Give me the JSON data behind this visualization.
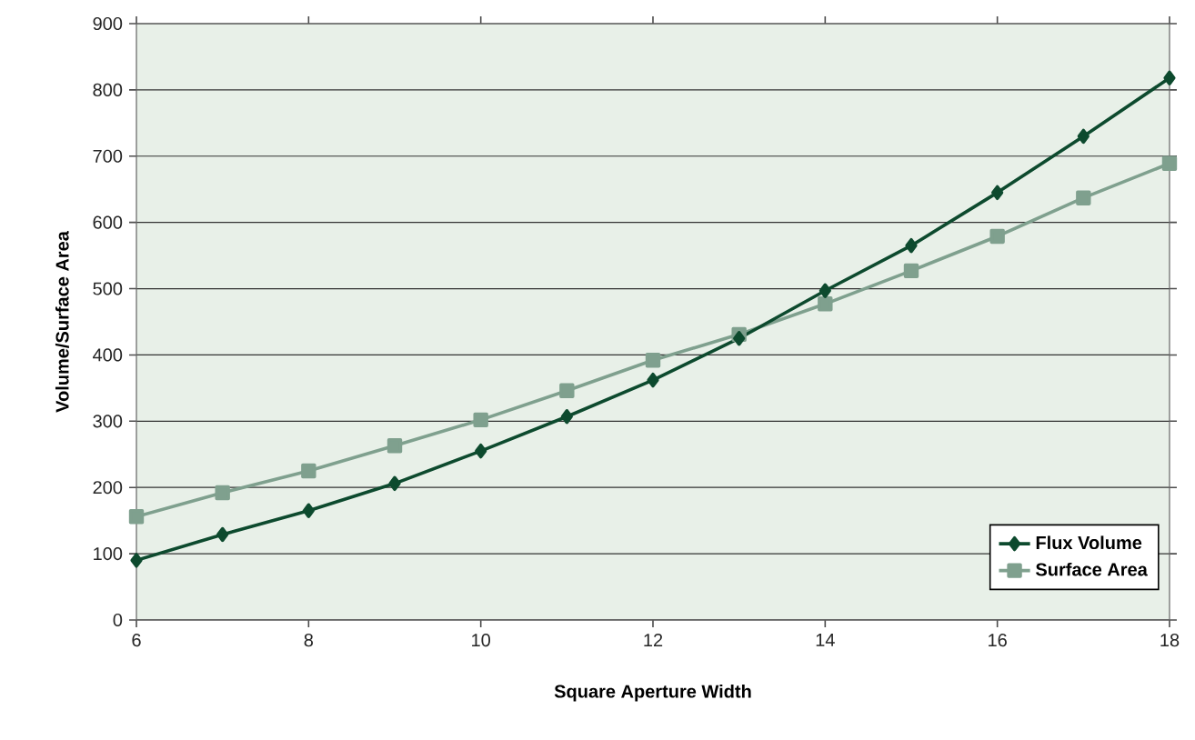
{
  "chart_data": {
    "type": "line",
    "xlabel": "Square Aperture Width",
    "ylabel": "Volume/Surface Area",
    "x": [
      6,
      7,
      8,
      9,
      10,
      11,
      12,
      13,
      14,
      15,
      16,
      17,
      18
    ],
    "series": [
      {
        "name": "Flux Volume",
        "color": "#0d4a2e",
        "marker": "diamond",
        "values": [
          90,
          129,
          165,
          206,
          255,
          307,
          362,
          425,
          497,
          565,
          645,
          730,
          818
        ]
      },
      {
        "name": "Surface Area",
        "color": "#7fa08e",
        "marker": "square",
        "values": [
          156,
          192,
          225,
          263,
          302,
          346,
          392,
          431,
          477,
          527,
          579,
          637,
          689
        ]
      }
    ],
    "xlim": [
      6,
      18
    ],
    "xticks": [
      6,
      8,
      10,
      12,
      14,
      16,
      18
    ],
    "ylim": [
      0,
      900
    ],
    "yticks": [
      0,
      100,
      200,
      300,
      400,
      500,
      600,
      700,
      800,
      900
    ],
    "grid": "y",
    "legend": "bottom right",
    "line_style": "solid"
  }
}
